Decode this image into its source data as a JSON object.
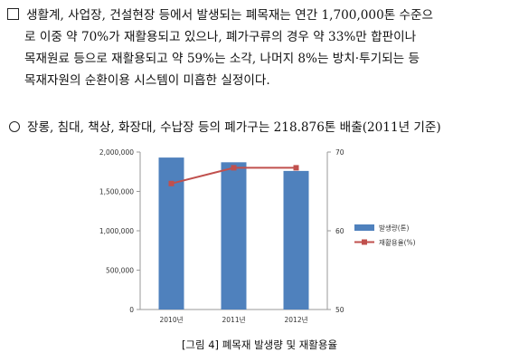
{
  "paragraph": {
    "line1": "생활계, 사업장, 건설현장 등에서 발생되는 폐목재는 연간 1,700,000톤 수준으",
    "line2": "로 이중 약 70%가 재활용되고 있으나, 폐가구류의 경우 약 33%만 합판이나",
    "line3": "목재원료 등으로 재활용되고 약 59%는 소각, 나머지 8%는 방치·투기되는 등",
    "line4": "목재자원의 순환이용 시스템이 미흡한 실정이다."
  },
  "bullet": {
    "text": "장롱, 침대, 책상, 화장대, 수납장 등의 폐가구는 218.876톤 배출(2011년 기준)"
  },
  "chart_data": {
    "type": "bar",
    "categories": [
      "2010년",
      "2011년",
      "2012년"
    ],
    "series": [
      {
        "name": "발생량(톤)",
        "type": "bar",
        "axis": "left",
        "values": [
          1930000,
          1870000,
          1760000
        ],
        "color": "#4f81bd"
      },
      {
        "name": "재활용율(%)",
        "type": "line",
        "axis": "right",
        "values": [
          66,
          68,
          68
        ],
        "color": "#c0504d"
      }
    ],
    "y_left": {
      "ticks": [
        "0",
        "500,000",
        "1,000,000",
        "1,500,000",
        "2,000,000"
      ],
      "ylim": [
        0,
        2000000
      ]
    },
    "y_right": {
      "ticks": [
        "50",
        "60",
        "70"
      ],
      "ylim": [
        50,
        70
      ]
    },
    "legend_placement": "right",
    "grid": false
  },
  "caption": "[그림 4] 폐목재 발생량 및 재활용율"
}
